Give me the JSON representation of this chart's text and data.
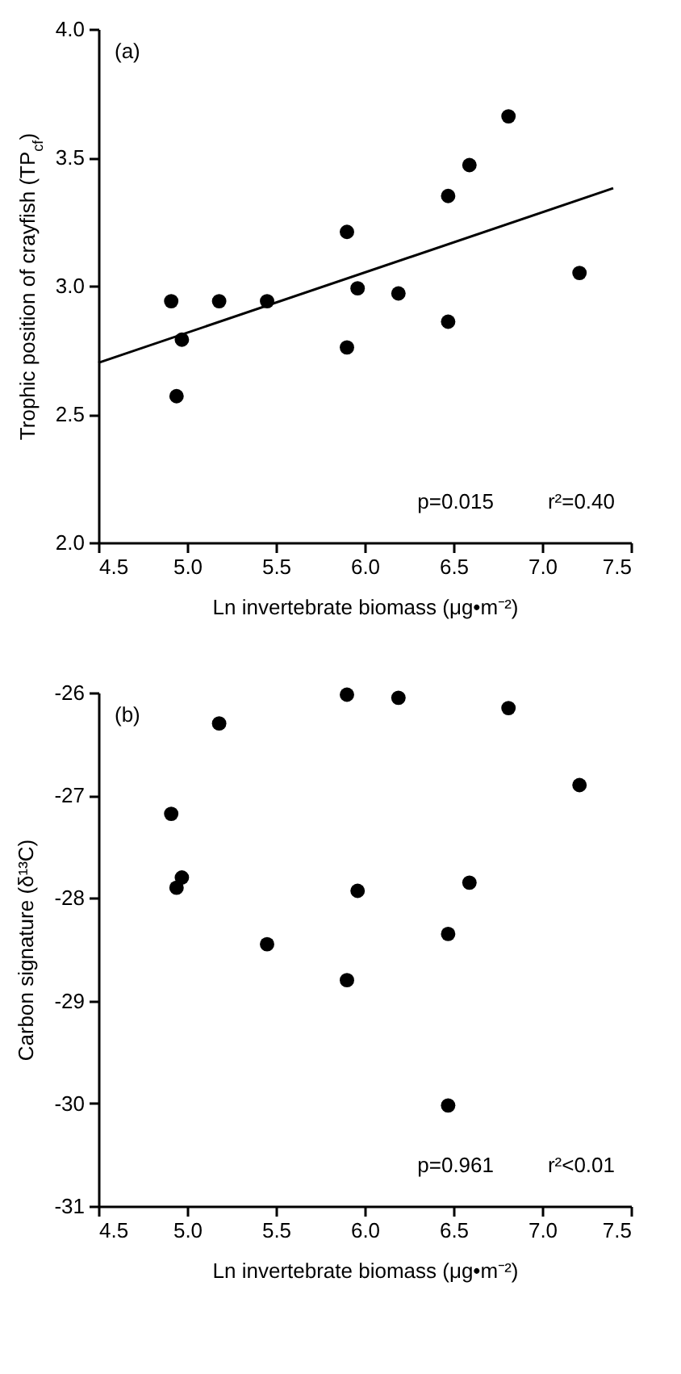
{
  "chart_data": [
    {
      "type": "scatter",
      "xlabel": "Ln invertebrate biomass (μg•m⁻²)",
      "ylabel": "Trophic position of crayfish (TP$_{cf}$)",
      "annotations": [
        "(a)",
        "p=0.015",
        "r²=0.40"
      ],
      "xlim": [
        4.5,
        7.5
      ],
      "xticks": [
        {
          "value": 4.5,
          "label": "4.5"
        },
        {
          "value": 5,
          "label": "5.0"
        },
        {
          "value": 5.5,
          "label": "5.5"
        },
        {
          "value": 6,
          "label": "6.0"
        },
        {
          "value": 6.5,
          "label": "6.5"
        },
        {
          "value": 7,
          "label": "7.0"
        },
        {
          "value": 7.5,
          "label": "7.5"
        }
      ],
      "ylim": [
        2,
        4
      ],
      "yticks": [
        {
          "value": 2,
          "label": "2.0"
        },
        {
          "value": 2.5,
          "label": "2.5"
        },
        {
          "value": 3,
          "label": "3.0"
        },
        {
          "value": 3.5,
          "label": "3.5"
        },
        {
          "value": 4,
          "label": "4.0"
        }
      ],
      "series": [
        {
          "marker": "circle",
          "color": "#000000",
          "x": [
            4.91,
            4.97,
            4.94,
            5.18,
            5.45,
            5.9,
            5.9,
            5.96,
            6.19,
            6.47,
            6.47,
            6.59,
            6.81,
            7.21
          ],
          "values": [
            2.94,
            2.79,
            2.57,
            2.94,
            2.94,
            3.21,
            2.76,
            2.99,
            2.97,
            3.35,
            2.86,
            3.47,
            3.66,
            3.05
          ]
        },
        {
          "type": "line",
          "color": "#000000",
          "x": [
            4.5,
            7.4
          ],
          "values": [
            2.7,
            3.38
          ]
        }
      ]
    },
    {
      "type": "scatter",
      "xlabel": "Ln invertebrate biomass (μg•m⁻²)",
      "ylabel": "Carbon signature (δ¹³C)",
      "annotations": [
        "(b)",
        "p=0.961",
        "r²<0.01"
      ],
      "xlim": [
        4.5,
        7.5
      ],
      "xticks": [
        {
          "value": 4.5,
          "label": "4.5"
        },
        {
          "value": 5,
          "label": "5.0"
        },
        {
          "value": 5.5,
          "label": "5.5"
        },
        {
          "value": 6,
          "label": "6.0"
        },
        {
          "value": 6.5,
          "label": "6.5"
        },
        {
          "value": 7,
          "label": "7.0"
        },
        {
          "value": 7.5,
          "label": "7.5"
        }
      ],
      "ylim": [
        -31,
        -26
      ],
      "yticks": [
        -31,
        -30,
        -29,
        -28,
        -27,
        -26
      ],
      "series": [
        {
          "marker": "circle",
          "color": "#000000",
          "x": [
            4.91,
            4.94,
            4.97,
            5.18,
            5.45,
            5.9,
            5.9,
            5.96,
            6.19,
            6.47,
            6.47,
            6.59,
            6.81,
            7.21
          ],
          "values": [
            -27.18,
            -27.9,
            -27.8,
            -26.3,
            -28.45,
            -26.02,
            -28.8,
            -27.93,
            -26.05,
            -28.35,
            -30.02,
            -27.85,
            -26.15,
            -26.9
          ]
        }
      ]
    }
  ]
}
